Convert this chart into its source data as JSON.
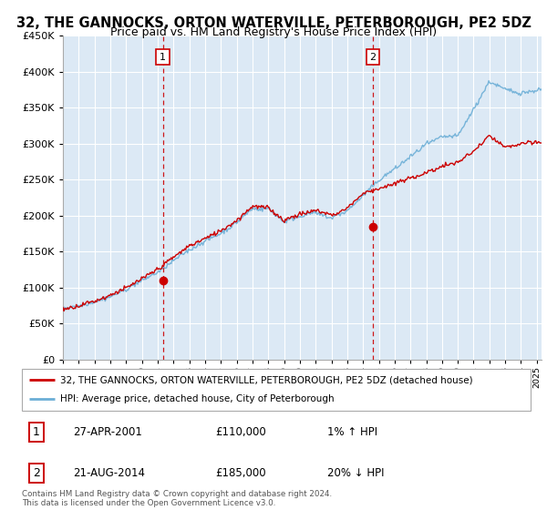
{
  "title": "32, THE GANNOCKS, ORTON WATERVILLE, PETERBOROUGH, PE2 5DZ",
  "subtitle": "Price paid vs. HM Land Registry's House Price Index (HPI)",
  "legend_line1": "32, THE GANNOCKS, ORTON WATERVILLE, PETERBOROUGH, PE2 5DZ (detached house)",
  "legend_line2": "HPI: Average price, detached house, City of Peterborough",
  "sale1_date": "27-APR-2001",
  "sale1_price": "£110,000",
  "sale1_hpi": "1% ↑ HPI",
  "sale1_year": 2001.32,
  "sale1_value": 110000,
  "sale2_date": "21-AUG-2014",
  "sale2_price": "£185,000",
  "sale2_hpi": "20% ↓ HPI",
  "sale2_year": 2014.63,
  "sale2_value": 185000,
  "copyright_text": "Contains HM Land Registry data © Crown copyright and database right 2024.\nThis data is licensed under the Open Government Licence v3.0.",
  "ylim": [
    0,
    450000
  ],
  "xlim_start": 1995,
  "xlim_end": 2025.3,
  "background_color": "#dce9f5",
  "red_color": "#cc0000",
  "blue_color": "#6baed6",
  "grid_color": "#ffffff",
  "title_fontsize": 10.5,
  "subtitle_fontsize": 9
}
